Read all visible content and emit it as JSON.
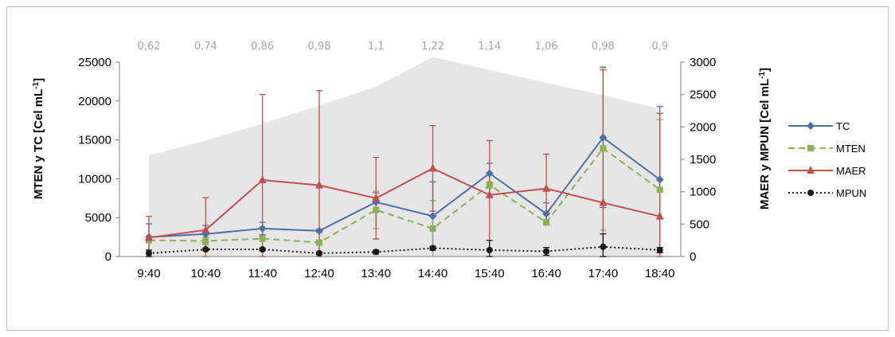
{
  "chart_data": {
    "type": "line",
    "categories": [
      "9:40",
      "10:40",
      "11:40",
      "12:40",
      "13:40",
      "14:40",
      "15:40",
      "16:40",
      "17:40",
      "18:40"
    ],
    "top_labels": [
      "0,62",
      "0,74",
      "0,86",
      "0,98",
      "1,1",
      "1,22",
      "1,14",
      "1,06",
      "0,98",
      "0,9"
    ],
    "ylabel_left": "MTEN y TC [Cel mL",
    "ylabel_right": "MAER y MPUN [Cel mL",
    "ylabel_sup": "-1",
    "ylabel_close": "]",
    "ylim_left": [
      0,
      25000
    ],
    "ylim_right": [
      0,
      3000
    ],
    "yticks_left": [
      "0",
      "5000",
      "10000",
      "15000",
      "20000",
      "25000"
    ],
    "yticks_right": [
      "0",
      "500",
      "1000",
      "1500",
      "2000",
      "2500",
      "3000"
    ],
    "legend_position": "right",
    "area": {
      "axis": "right",
      "color": "#e6e6e6",
      "values": [
        1560,
        1790,
        2050,
        2330,
        2620,
        3080,
        2880,
        2680,
        2490,
        2280
      ]
    },
    "series": [
      {
        "name": "TC",
        "axis": "left",
        "color": "#4f6fa8",
        "dash": "",
        "marker": "diamond",
        "values": [
          2500,
          2900,
          3600,
          3300,
          7000,
          5200,
          10700,
          5500,
          15300,
          9900
        ],
        "err": [
          1700,
          1100,
          800,
          200,
          1200,
          4400,
          1300,
          1400,
          9000,
          9400
        ]
      },
      {
        "name": "MTEN",
        "axis": "left",
        "color": "#8db155",
        "dash": "8,5",
        "marker": "square",
        "values": [
          2100,
          2000,
          2300,
          1800,
          6000,
          3600,
          9200,
          4400,
          13900,
          8600
        ],
        "err": [
          300,
          500,
          1500,
          200,
          2400,
          3600,
          400,
          300,
          10500,
          9000
        ]
      },
      {
        "name": "MAER",
        "axis": "right",
        "color": "#c0504d",
        "dash": "",
        "marker": "triangle",
        "values": [
          290,
          410,
          1180,
          1100,
          900,
          1360,
          950,
          1050,
          830,
          620
        ],
        "err": [
          330,
          500,
          1320,
          1460,
          630,
          660,
          840,
          530,
          2050,
          1590
        ]
      },
      {
        "name": "MPUN",
        "axis": "right",
        "color": "#1a1a1a",
        "dash": "2,3",
        "marker": "circle",
        "values": [
          50,
          110,
          110,
          50,
          70,
          130,
          100,
          80,
          150,
          100
        ],
        "err": [
          50,
          20,
          20,
          20,
          30,
          30,
          150,
          60,
          200,
          40
        ]
      }
    ]
  }
}
